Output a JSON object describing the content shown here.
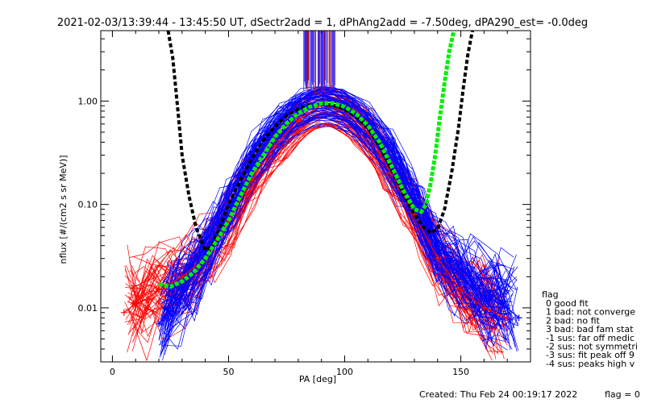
{
  "chart_data": {
    "type": "scatter",
    "title": "2021-02-03/13:39:44 - 13:45:50 UT, dSectr2add = 1, dPhAng2add = -7.50deg, dPA290_est=  -0.0deg",
    "xlabel": "PA [deg]",
    "ylabel": "nflux [#/(cm2 s sr MeV)]",
    "xlim": [
      -5,
      180
    ],
    "ylim": [
      0.003,
      4.8
    ],
    "yscale": "log",
    "x_ticks": [
      {
        "value": 0,
        "label": "0"
      },
      {
        "value": 50,
        "label": "50"
      },
      {
        "value": 100,
        "label": "100"
      },
      {
        "value": 150,
        "label": "150"
      }
    ],
    "y_ticks": [
      {
        "value": 0.01,
        "label": "0.01"
      },
      {
        "value": 0.1,
        "label": "0.10"
      },
      {
        "value": 1,
        "label": "1.00"
      }
    ],
    "series": [
      {
        "color": "#ff0000",
        "marker": "plus",
        "x": [
          5,
          10,
          15,
          20,
          30,
          40,
          50,
          60,
          70,
          80,
          90,
          100,
          110,
          120,
          130,
          140,
          150,
          160,
          170
        ],
        "y": [
          0.009,
          0.011,
          0.012,
          0.015,
          0.02,
          0.03,
          0.07,
          0.17,
          0.37,
          0.65,
          0.93,
          0.8,
          0.5,
          0.2,
          0.08,
          0.03,
          0.015,
          0.01,
          0.008
        ]
      },
      {
        "color": "#0000ff",
        "marker": "plus",
        "x": [
          20,
          30,
          40,
          50,
          60,
          70,
          80,
          90,
          100,
          110,
          120,
          130,
          140,
          150,
          160,
          170,
          175
        ],
        "y": [
          0.007,
          0.015,
          0.03,
          0.1,
          0.25,
          0.5,
          0.8,
          0.95,
          0.82,
          0.55,
          0.28,
          0.1,
          0.035,
          0.02,
          0.013,
          0.01,
          0.008
        ]
      },
      {
        "color": "#000000",
        "style": "dashed",
        "x": [
          24,
          26,
          28,
          30,
          33,
          36,
          40,
          43,
          46,
          50,
          55,
          60,
          65,
          70,
          75,
          80,
          85,
          90,
          95,
          100,
          105,
          110,
          115,
          120,
          125,
          130,
          134,
          137,
          140,
          143,
          146,
          149,
          151,
          153,
          155
        ],
        "y": [
          4.8,
          2.6,
          0.9,
          0.3,
          0.12,
          0.06,
          0.036,
          0.04,
          0.058,
          0.1,
          0.17,
          0.28,
          0.42,
          0.57,
          0.72,
          0.84,
          0.91,
          0.93,
          0.91,
          0.84,
          0.7,
          0.55,
          0.37,
          0.22,
          0.13,
          0.08,
          0.06,
          0.053,
          0.058,
          0.09,
          0.2,
          0.55,
          1.3,
          2.8,
          4.8
        ]
      },
      {
        "color": "#00ee00",
        "style": "dotted-thick",
        "x": [
          20,
          25,
          30,
          35,
          40,
          45,
          50,
          55,
          60,
          65,
          70,
          75,
          80,
          85,
          90,
          95,
          100,
          105,
          110,
          115,
          120,
          125,
          130,
          133,
          135,
          137,
          139,
          141,
          143,
          145,
          147
        ],
        "y": [
          0.017,
          0.016,
          0.018,
          0.022,
          0.03,
          0.045,
          0.07,
          0.12,
          0.2,
          0.3,
          0.45,
          0.61,
          0.76,
          0.88,
          0.95,
          0.95,
          0.88,
          0.75,
          0.58,
          0.4,
          0.24,
          0.14,
          0.09,
          0.085,
          0.1,
          0.16,
          0.3,
          0.7,
          1.5,
          3.0,
          4.8
        ]
      }
    ],
    "legend": {
      "placement": "right",
      "title": "flag",
      "entries": [
        "0 good fit",
        "1 bad: not converge",
        "2 bad: no fit",
        "3 bad: bad fam stat",
        "-1 sus: far off medic",
        "-2 sus: not symmetri",
        "-3 sus: fit peak off 9",
        "-4 sus: peaks high v"
      ]
    },
    "footer": {
      "created": "Created: Thu Feb 24 00:19:17 2022",
      "flag": "flag = 0"
    }
  }
}
